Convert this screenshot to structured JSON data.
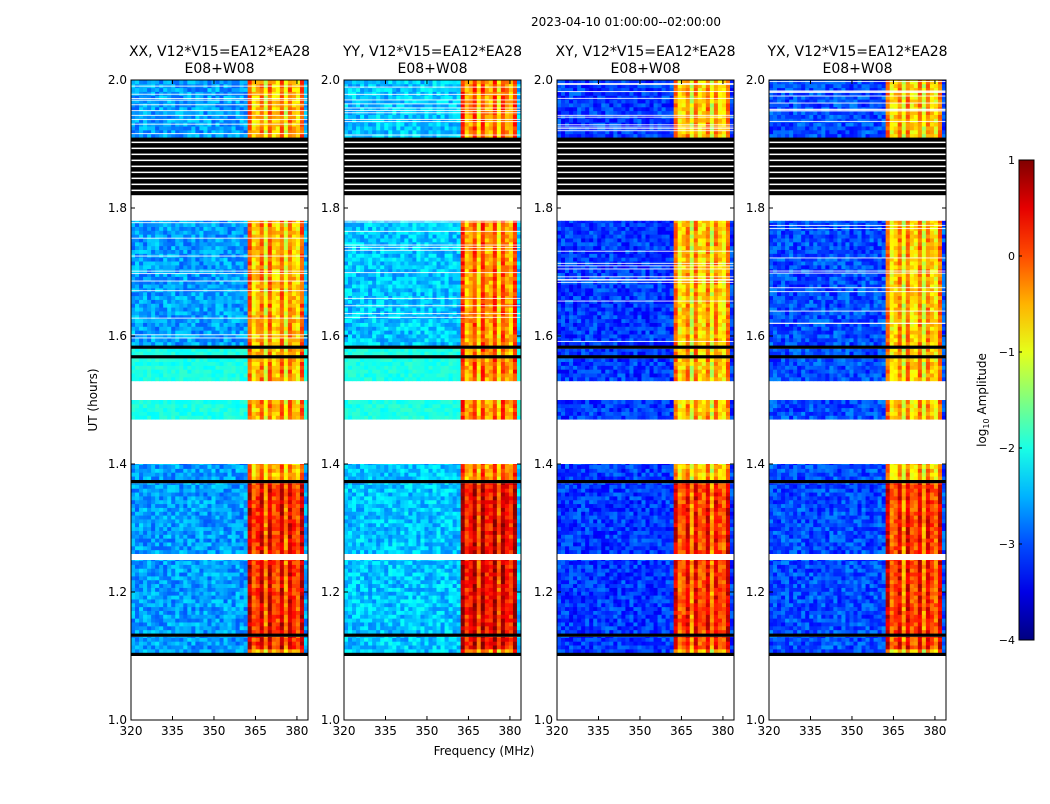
{
  "figure": {
    "suptitle": "2023-04-10  01:00:00--02:00:00",
    "xlabel": "Frequency (MHz)",
    "ylabel": "UT (hours)"
  },
  "chart_data": {
    "type": "heatmap",
    "x_range": [
      320,
      384
    ],
    "x_ticks": [
      320,
      335,
      350,
      365,
      380
    ],
    "x_tick_labels": [
      "320",
      "335",
      "350",
      "365",
      "380"
    ],
    "y_range": [
      1.0,
      2.0
    ],
    "y_ticks": [
      1.0,
      1.2,
      1.4,
      1.6,
      1.8,
      2.0
    ],
    "y_tick_labels": [
      "1.0",
      "1.2",
      "1.4",
      "1.6",
      "1.8",
      "2.0"
    ],
    "colormap": "jet",
    "colorbar": {
      "label": "log10 Amplitude",
      "label_main": "log",
      "label_sub": "10",
      "label_rest": " Amplitude",
      "range": [
        -4,
        1
      ],
      "ticks": [
        1,
        0,
        -1,
        -2,
        -3,
        -4
      ],
      "tick_labels": [
        "1",
        "0",
        "−1",
        "−2",
        "−3",
        "−4"
      ]
    },
    "panels": [
      {
        "pol": "XX",
        "title_line1": "XX, V12*V15=EA12*EA28",
        "title_line2": "E08+W08",
        "bg_level": -2.6,
        "rfi_level": -0.5,
        "cross_hand": false
      },
      {
        "pol": "YY",
        "title_line1": "YY, V12*V15=EA12*EA28",
        "title_line2": "E08+W08",
        "bg_level": -2.4,
        "rfi_level": -0.3,
        "cross_hand": false
      },
      {
        "pol": "XY",
        "title_line1": "XY, V12*V15=EA12*EA28",
        "title_line2": "E08+W08",
        "bg_level": -3.1,
        "rfi_level": -0.6,
        "cross_hand": true
      },
      {
        "pol": "YX",
        "title_line1": "YX, V12*V15=EA12*EA28",
        "title_line2": "E08+W08",
        "bg_level": -3.0,
        "rfi_level": -0.6,
        "cross_hand": true
      }
    ],
    "data_segments_ut": [
      [
        1.105,
        1.13
      ],
      [
        1.135,
        1.25
      ],
      [
        1.26,
        1.37
      ],
      [
        1.375,
        1.4
      ],
      [
        1.47,
        1.5
      ],
      [
        1.53,
        1.565
      ],
      [
        1.57,
        1.58
      ],
      [
        1.585,
        1.78
      ],
      [
        1.91,
        2.0
      ]
    ],
    "flagged_black_ut": [
      [
        1.1,
        1.105
      ],
      [
        1.13,
        1.135
      ],
      [
        1.37,
        1.375
      ],
      [
        1.565,
        1.57
      ],
      [
        1.58,
        1.585
      ],
      [
        1.82,
        1.91
      ]
    ],
    "rfi_band_mhz": [
      362,
      382
    ]
  }
}
